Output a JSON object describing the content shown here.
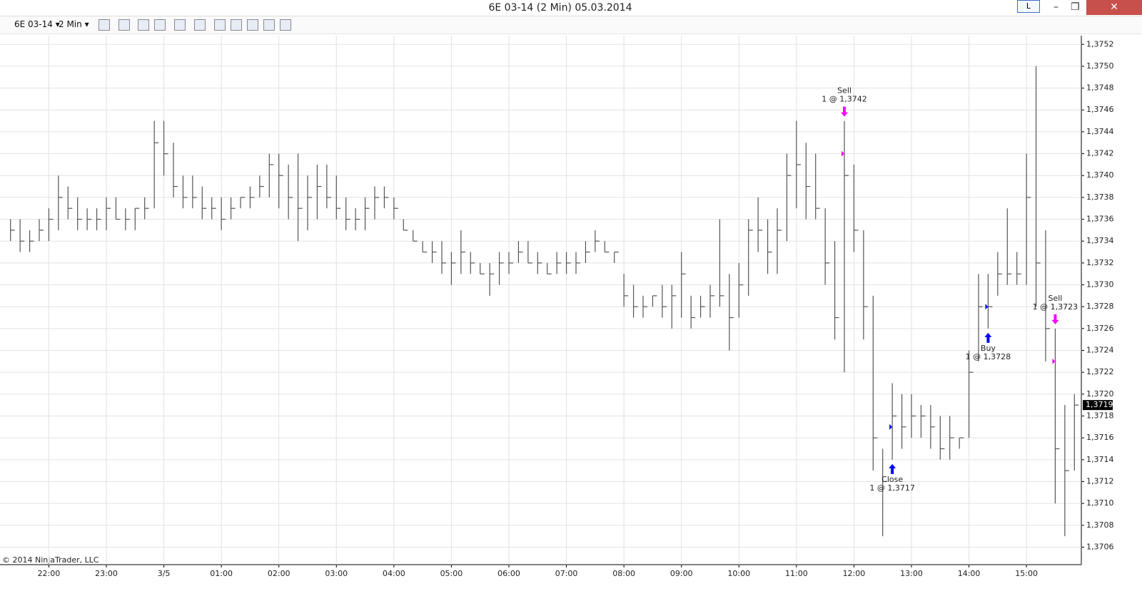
{
  "window": {
    "title": "6E 03-14 (2 Min)  05.03.2014",
    "mode_button": "L"
  },
  "toolbar": {
    "instrument": "6E 03-14",
    "interval": "2 Min"
  },
  "copyright": "© 2014 NinjaTrader, LLC",
  "chart_data": {
    "type": "ohlc",
    "categories": [
      null,
      null,
      null,
      null,
      "22:00",
      null,
      null,
      null,
      null,
      null,
      "23:00",
      null,
      null,
      null,
      null,
      null,
      "3/5",
      null,
      null,
      null,
      null,
      null,
      "01:00",
      null,
      null,
      null,
      null,
      null,
      "02:00",
      null,
      null,
      null,
      null,
      null,
      "03:00",
      null,
      null,
      null,
      null,
      null,
      "04:00",
      null,
      null,
      null,
      null,
      null,
      "05:00",
      null,
      null,
      null,
      null,
      null,
      "06:00",
      null,
      null,
      null,
      null,
      null,
      "07:00",
      null,
      null,
      null,
      null,
      null,
      "08:00",
      null,
      null,
      null,
      null,
      null,
      "09:00",
      null,
      null,
      null,
      null,
      null,
      "10:00",
      null,
      null,
      null,
      null,
      null,
      "11:00",
      null,
      null,
      null,
      null,
      null,
      "12:00",
      null,
      null,
      null,
      null,
      null,
      "13:00",
      null,
      null,
      null,
      null,
      null,
      "14:00",
      null,
      null,
      null,
      null,
      null,
      "15:00",
      null,
      null,
      null,
      null,
      null
    ],
    "high": [
      1.3736,
      1.3736,
      1.3735,
      1.3736,
      1.3737,
      1.374,
      1.3739,
      1.3738,
      1.3737,
      1.3737,
      1.3738,
      1.3738,
      1.3737,
      1.3737,
      1.3738,
      1.3745,
      1.3745,
      1.3743,
      1.374,
      1.374,
      1.3739,
      1.3738,
      1.3738,
      1.3738,
      1.3738,
      1.3739,
      1.374,
      1.3742,
      1.3742,
      1.3741,
      1.3742,
      1.374,
      1.3741,
      1.3741,
      1.374,
      1.3738,
      1.3737,
      1.3738,
      1.3739,
      1.3739,
      1.3738,
      1.3736,
      1.3735,
      1.3734,
      1.3734,
      1.3734,
      1.3733,
      1.3735,
      1.3733,
      1.3732,
      1.3732,
      1.3733,
      1.3733,
      1.3734,
      1.3734,
      1.3733,
      1.3732,
      1.3733,
      1.3733,
      1.3733,
      1.3734,
      1.3735,
      1.3734,
      1.3733,
      1.3731,
      1.373,
      1.3729,
      1.3729,
      1.373,
      1.373,
      1.3733,
      1.3729,
      1.3729,
      1.373,
      1.3736,
      1.3731,
      1.3732,
      1.3736,
      1.3738,
      1.3736,
      1.3737,
      1.3742,
      1.3745,
      1.3743,
      1.3742,
      1.3737,
      1.3734,
      1.3745,
      1.3741,
      1.3735,
      1.3729,
      1.3715,
      1.3721,
      1.372,
      1.372,
      1.3719,
      1.3719,
      1.3718,
      1.3718,
      1.3716,
      1.3724,
      1.3731,
      1.3731,
      1.3733,
      1.3737,
      1.3733,
      1.3742,
      1.375,
      1.3735,
      1.3726,
      1.3719,
      1.372
    ],
    "low": [
      1.3734,
      1.3733,
      1.3733,
      1.3734,
      1.3734,
      1.3735,
      1.3736,
      1.3735,
      1.3735,
      1.3735,
      1.3735,
      1.3736,
      1.3735,
      1.3735,
      1.3736,
      1.3737,
      1.374,
      1.3738,
      1.3737,
      1.3737,
      1.3736,
      1.3736,
      1.3735,
      1.3736,
      1.3737,
      1.3737,
      1.3738,
      1.3738,
      1.3737,
      1.3736,
      1.3734,
      1.3735,
      1.3736,
      1.3737,
      1.3736,
      1.3735,
      1.3735,
      1.3735,
      1.3736,
      1.3737,
      1.3736,
      1.3735,
      1.3734,
      1.3733,
      1.3732,
      1.3731,
      1.373,
      1.3731,
      1.3731,
      1.3731,
      1.3729,
      1.373,
      1.3731,
      1.3732,
      1.3732,
      1.3731,
      1.3731,
      1.3731,
      1.3731,
      1.3731,
      1.3732,
      1.3733,
      1.3733,
      1.3732,
      1.3728,
      1.3727,
      1.3727,
      1.3728,
      1.3727,
      1.3726,
      1.3727,
      1.3726,
      1.3727,
      1.3727,
      1.3728,
      1.3724,
      1.3727,
      1.3729,
      1.3733,
      1.3731,
      1.3731,
      1.3734,
      1.3737,
      1.3736,
      1.3736,
      1.373,
      1.3725,
      1.3722,
      1.3733,
      1.3725,
      1.3713,
      1.3707,
      1.3714,
      1.3715,
      1.3716,
      1.3716,
      1.3715,
      1.3714,
      1.3714,
      1.3715,
      1.3716,
      1.3723,
      1.3726,
      1.3729,
      1.373,
      1.373,
      1.373,
      1.3728,
      1.3723,
      1.371,
      1.3707,
      1.3713
    ],
    "close": [
      1.3735,
      1.3734,
      1.3734,
      1.3735,
      1.3736,
      1.3738,
      1.3737,
      1.3736,
      1.3736,
      1.3736,
      1.3737,
      1.3736,
      1.3736,
      1.3737,
      1.3737,
      1.3743,
      1.3742,
      1.3739,
      1.3738,
      1.3738,
      1.3737,
      1.3737,
      1.3736,
      1.3737,
      1.3738,
      1.3738,
      1.3739,
      1.3741,
      1.374,
      1.3738,
      1.3737,
      1.3738,
      1.3739,
      1.3738,
      1.3737,
      1.3736,
      1.3736,
      1.3737,
      1.3738,
      1.3738,
      1.3737,
      1.3735,
      1.3734,
      1.3733,
      1.3733,
      1.3732,
      1.3732,
      1.3733,
      1.3732,
      1.3731,
      1.3731,
      1.3732,
      1.3732,
      1.3733,
      1.3732,
      1.3732,
      1.3731,
      1.3732,
      1.3732,
      1.3732,
      1.3733,
      1.3734,
      1.3733,
      1.3733,
      1.3729,
      1.3728,
      1.3728,
      1.3729,
      1.3728,
      1.3729,
      1.3731,
      1.3727,
      1.3728,
      1.3729,
      1.3729,
      1.3727,
      1.373,
      1.3735,
      1.3735,
      1.3733,
      1.3735,
      1.374,
      1.3741,
      1.3739,
      1.3737,
      1.3732,
      1.3727,
      1.374,
      1.3735,
      1.3728,
      1.3716,
      1.3712,
      1.3718,
      1.3717,
      1.3718,
      1.3718,
      1.3717,
      1.3715,
      1.3716,
      1.3716,
      1.3722,
      1.3728,
      1.3728,
      1.3731,
      1.3731,
      1.3731,
      1.3738,
      1.3732,
      1.3726,
      1.3715,
      1.3713,
      1.3719
    ],
    "color": "#555555",
    "ylim": [
      1.37044,
      1.37528
    ],
    "yticks": [
      {
        "value": 1.3706,
        "label": "1,3706"
      },
      {
        "value": 1.3708,
        "label": "1,3708"
      },
      {
        "value": 1.371,
        "label": "1,3710"
      },
      {
        "value": 1.3712,
        "label": "1,3712"
      },
      {
        "value": 1.3714,
        "label": "1,3714"
      },
      {
        "value": 1.3716,
        "label": "1,3716"
      },
      {
        "value": 1.3718,
        "label": "1,3718"
      },
      {
        "value": 1.372,
        "label": "1,3720"
      },
      {
        "value": 1.3722,
        "label": "1,3722"
      },
      {
        "value": 1.3724,
        "label": "1,3724"
      },
      {
        "value": 1.3726,
        "label": "1,3726"
      },
      {
        "value": 1.3728,
        "label": "1,3728"
      },
      {
        "value": 1.373,
        "label": "1,3730"
      },
      {
        "value": 1.3732,
        "label": "1,3732"
      },
      {
        "value": 1.3734,
        "label": "1,3734"
      },
      {
        "value": 1.3736,
        "label": "1,3736"
      },
      {
        "value": 1.3738,
        "label": "1,3738"
      },
      {
        "value": 1.374,
        "label": "1,3740"
      },
      {
        "value": 1.3742,
        "label": "1,3742"
      },
      {
        "value": 1.3744,
        "label": "1,3744"
      },
      {
        "value": 1.3746,
        "label": "1,3746"
      },
      {
        "value": 1.3748,
        "label": "1,3748"
      },
      {
        "value": 1.375,
        "label": "1,3750"
      },
      {
        "value": 1.3752,
        "label": "1,3752"
      }
    ],
    "grid": true,
    "last": {
      "value": 1.3719,
      "label": "1,3719"
    },
    "trades": [
      {
        "x": 87,
        "label": "Sell",
        "text": "1 @ 1,3742",
        "price": 1.3742,
        "side": "short",
        "color": "#ff00ff"
      },
      {
        "x": 92,
        "label": "Close",
        "text": "1 @ 1,3717",
        "price": 1.3717,
        "side": "long",
        "color": "#0000ff"
      },
      {
        "x": 102,
        "label": "Buy",
        "text": "1 @ 1,3728",
        "price": 1.3728,
        "side": "long",
        "color": "#0000ff"
      },
      {
        "x": 109,
        "label": "Sell",
        "text": "1 @ 1,3723",
        "price": 1.3723,
        "side": "short",
        "color": "#ff00ff"
      }
    ]
  }
}
